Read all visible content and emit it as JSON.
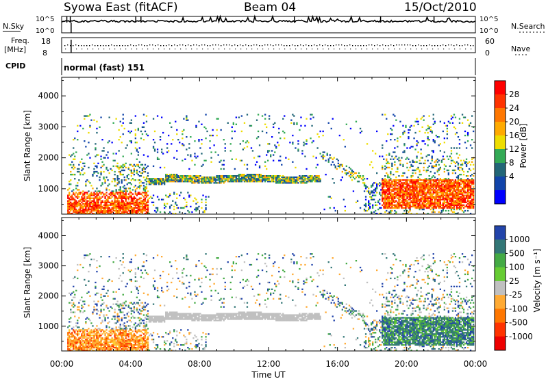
{
  "header": {
    "station": "Syowa East (fitACF)",
    "beam": "Beam 04",
    "date": "15/Oct/2010"
  },
  "strips": {
    "nsky_label": "N.Sky",
    "nsky_ticks": [
      "10^5",
      "10^0"
    ],
    "nsearch_label": "N.Search",
    "freq_label_1": "Freq.",
    "freq_label_2": "[MHz]",
    "freq_ticks": [
      "18",
      "8"
    ],
    "nave_ticks": [
      "60",
      "0"
    ],
    "nave_label": "Nave",
    "cpid_label": "CPID",
    "cpid_text": "normal (fast) 151"
  },
  "chart_data": [
    {
      "type": "heatmap",
      "ylabel": "Slant Range [km]",
      "xlabel": "Time UT",
      "x_ticks": [
        "00:00",
        "04:00",
        "08:00",
        "12:00",
        "16:00",
        "20:00",
        "00:00"
      ],
      "x_range_hours": [
        0,
        24
      ],
      "y_range": [
        180,
        4600
      ],
      "y_ticks": [
        1000,
        2000,
        3000,
        4000
      ],
      "colorbar": {
        "label": "Power [dB]",
        "ticks": [
          "28",
          "24",
          "20",
          "16",
          "12",
          "8",
          "4"
        ],
        "colors": [
          "#ff0000",
          "#ff3300",
          "#ff7700",
          "#ffaa00",
          "#eedd00",
          "#33aa55",
          "#226677",
          "#1144aa",
          "#0000ff"
        ]
      }
    },
    {
      "type": "heatmap",
      "ylabel": "Slant Range [km]",
      "xlabel": "Time UT",
      "x_ticks": [
        "00:00",
        "04:00",
        "08:00",
        "12:00",
        "16:00",
        "20:00",
        "00:00"
      ],
      "x_range_hours": [
        0,
        24
      ],
      "y_range": [
        180,
        4600
      ],
      "y_ticks": [
        1000,
        2000,
        3000,
        4000
      ],
      "colorbar": {
        "label": "Velocity [m s⁻¹]",
        "ticks": [
          "1000",
          "500",
          "100",
          "25",
          "-25",
          "-100",
          "-500",
          "-1000"
        ],
        "colors": [
          "#2244aa",
          "#337777",
          "#44aa44",
          "#66cc33",
          "#c0c0c0",
          "#ffaa33",
          "#ff7700",
          "#ff3300",
          "#ee0000"
        ]
      }
    }
  ]
}
